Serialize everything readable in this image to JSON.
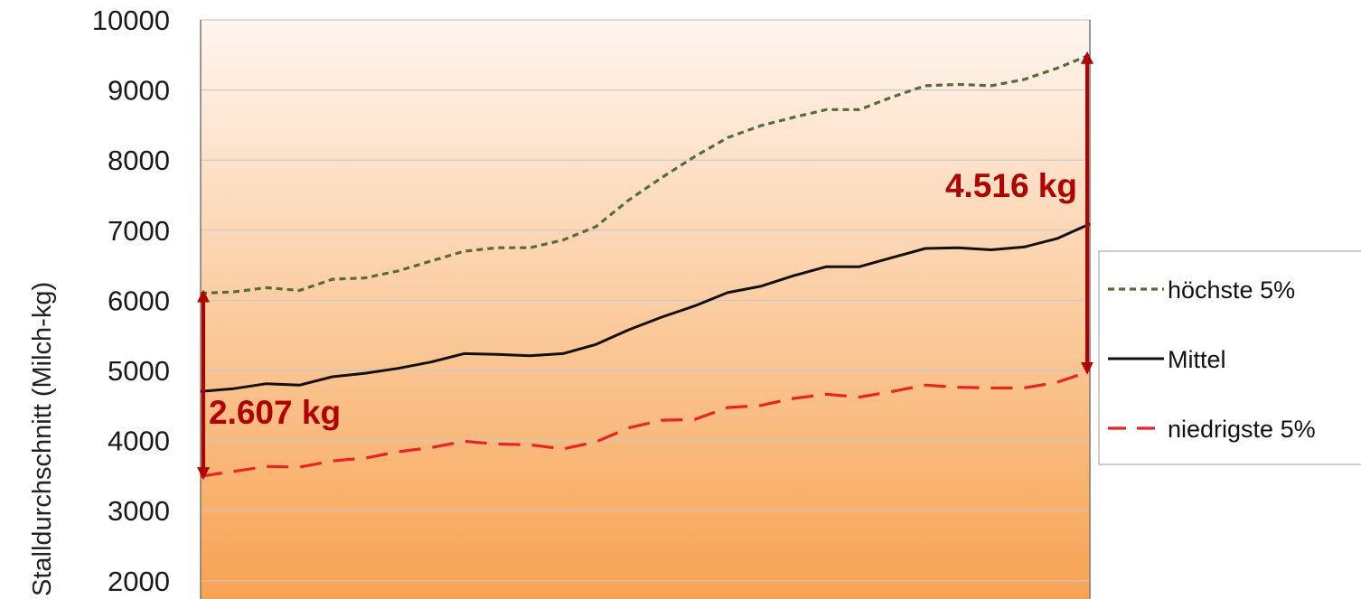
{
  "chart_data": {
    "type": "line",
    "ylabel": "Stalldurchschnitt (Milch-kg)",
    "xlabel": "",
    "ylim": [
      2000,
      10000
    ],
    "y_ticks": [
      2000,
      3000,
      4000,
      5000,
      6000,
      7000,
      8000,
      9000,
      10000
    ],
    "grid": true,
    "legend_position": "right",
    "series": [
      {
        "name": "höchste 5%",
        "style": "dotted",
        "color": "#5a6b3a",
        "values": [
          6100,
          6120,
          6180,
          6140,
          6300,
          6320,
          6420,
          6560,
          6700,
          6750,
          6750,
          6860,
          7050,
          7430,
          7750,
          8050,
          8320,
          8490,
          8610,
          8720,
          8720,
          8900,
          9060,
          9080,
          9060,
          9150,
          9310,
          9500
        ]
      },
      {
        "name": "Mittel",
        "style": "solid",
        "color": "#111111",
        "values": [
          4700,
          4740,
          4810,
          4790,
          4910,
          4960,
          5030,
          5120,
          5240,
          5230,
          5210,
          5240,
          5370,
          5580,
          5760,
          5920,
          6110,
          6200,
          6350,
          6480,
          6480,
          6610,
          6740,
          6750,
          6720,
          6760,
          6880,
          7090
        ]
      },
      {
        "name": "niedrigste 5%",
        "style": "dashed",
        "color": "#ee2222",
        "values": [
          3490,
          3560,
          3630,
          3620,
          3710,
          3750,
          3840,
          3900,
          3990,
          3950,
          3940,
          3880,
          3980,
          4180,
          4290,
          4300,
          4470,
          4500,
          4600,
          4660,
          4620,
          4700,
          4790,
          4760,
          4750,
          4750,
          4830,
          4990
        ]
      }
    ],
    "annotations": [
      {
        "text": "2.607 kg",
        "from": 3490,
        "to": 6100,
        "at": "start"
      },
      {
        "text": "4.516 kg",
        "from": 4990,
        "to": 9500,
        "at": "end"
      }
    ],
    "colors": {
      "arrow": "#b00000",
      "background_top": "#fff6f0",
      "background_bottom": "#f7a04c"
    }
  }
}
